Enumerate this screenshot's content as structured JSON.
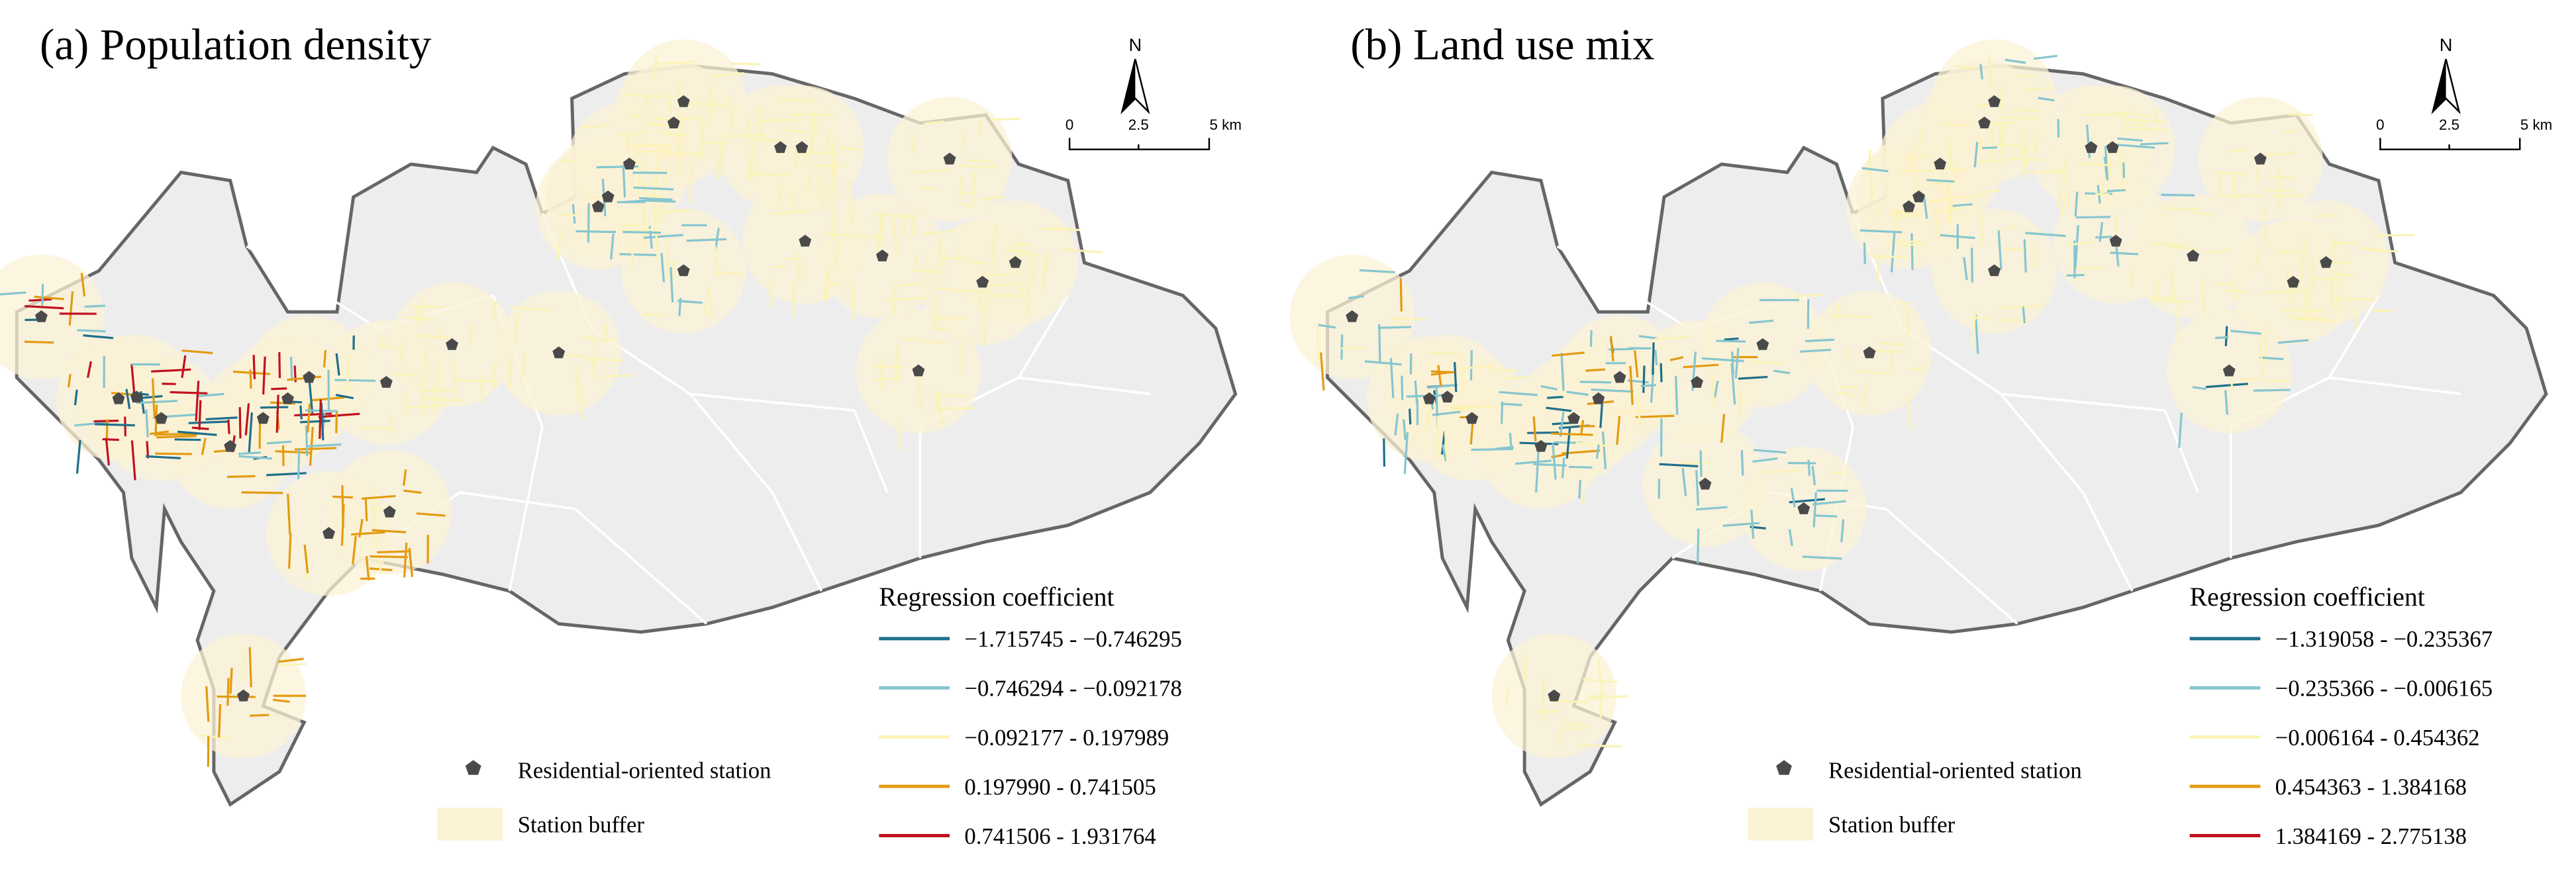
{
  "panels": [
    {
      "title": "(a) Population density",
      "north": "N",
      "scale_labels": [
        "0",
        "2.5",
        "5 km"
      ],
      "legend_title": "Regression coefficient",
      "legend_items": [
        {
          "label": "−1.715745 - −0.746295",
          "color": "#1f6f8b"
        },
        {
          "label": "−0.746294 - −0.092178",
          "color": "#86c6cf"
        },
        {
          "label": "−0.092177 - 0.197989",
          "color": "#fbf3b8"
        },
        {
          "label": "0.197990 - 0.741505",
          "color": "#e39b12"
        },
        {
          "label": "0.741506 - 1.931764",
          "color": "#c1121f"
        }
      ],
      "station_label": "Residential-oriented station",
      "buffer_label": "Station buffer"
    },
    {
      "title": "(b) Land use mix",
      "north": "N",
      "scale_labels": [
        "0",
        "2.5",
        "5 km"
      ],
      "legend_title": "Regression coefficient",
      "legend_items": [
        {
          "label": "−1.319058 - −0.235367",
          "color": "#1f6f8b"
        },
        {
          "label": "−0.235366 - −0.006165",
          "color": "#86c6cf"
        },
        {
          "label": "−0.006164 - 0.454362",
          "color": "#fbf3b8"
        },
        {
          "label": "0.454363 - 1.384168",
          "color": "#e39b12"
        },
        {
          "label": "1.384169 - 2.775138",
          "color": "#c1121f"
        }
      ],
      "station_label": "Residential-oriented station",
      "buffer_label": "Station buffer"
    }
  ]
}
